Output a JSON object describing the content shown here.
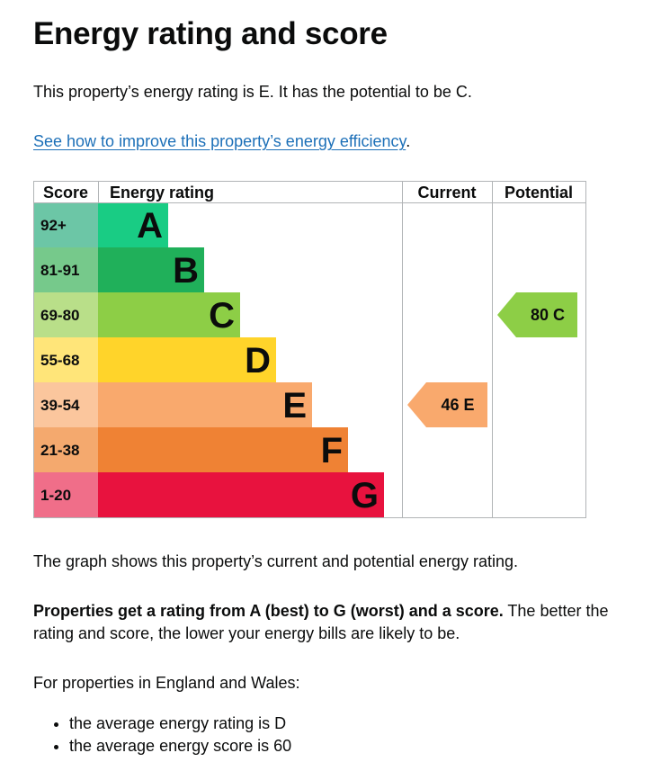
{
  "heading": "Energy rating and score",
  "intro": "This property’s energy rating is E. It has the potential to be C.",
  "improve_link": "See how to improve this property’s energy efficiency",
  "improve_suffix": ".",
  "chart_data": {
    "type": "bar",
    "headers": {
      "score": "Score",
      "rating": "Energy rating",
      "current": "Current",
      "potential": "Potential"
    },
    "bands": [
      {
        "score": "92+",
        "letter": "A",
        "bar_color": "#19cc84",
        "score_color": "#6cc6a6"
      },
      {
        "score": "81-91",
        "letter": "B",
        "bar_color": "#20b05a",
        "score_color": "#76c98b"
      },
      {
        "score": "69-80",
        "letter": "C",
        "bar_color": "#8dce46",
        "score_color": "#b9df89"
      },
      {
        "score": "55-68",
        "letter": "D",
        "bar_color": "#ffd42a",
        "score_color": "#ffe579"
      },
      {
        "score": "39-54",
        "letter": "E",
        "bar_color": "#f9a96d",
        "score_color": "#fbc69d"
      },
      {
        "score": "21-38",
        "letter": "F",
        "bar_color": "#ef8234",
        "score_color": "#f4a96e"
      },
      {
        "score": "1-20",
        "letter": "G",
        "bar_color": "#e8123e",
        "score_color": "#f06e89"
      }
    ],
    "current": {
      "score": 46,
      "letter": "E",
      "label": "46 E",
      "color": "#f9a96d"
    },
    "potential": {
      "score": 80,
      "letter": "C",
      "label": "80 C",
      "color": "#8dce46"
    }
  },
  "graph_note": "The graph shows this property’s current and potential energy rating.",
  "props_bold": "Properties get a rating from A (best) to G (worst) and a score.",
  "props_rest": " The better the rating and score, the lower your energy bills are likely to be.",
  "avg_intro": "For properties in England and Wales:",
  "averages": [
    "the average energy rating is D",
    "the average energy score is 60"
  ]
}
